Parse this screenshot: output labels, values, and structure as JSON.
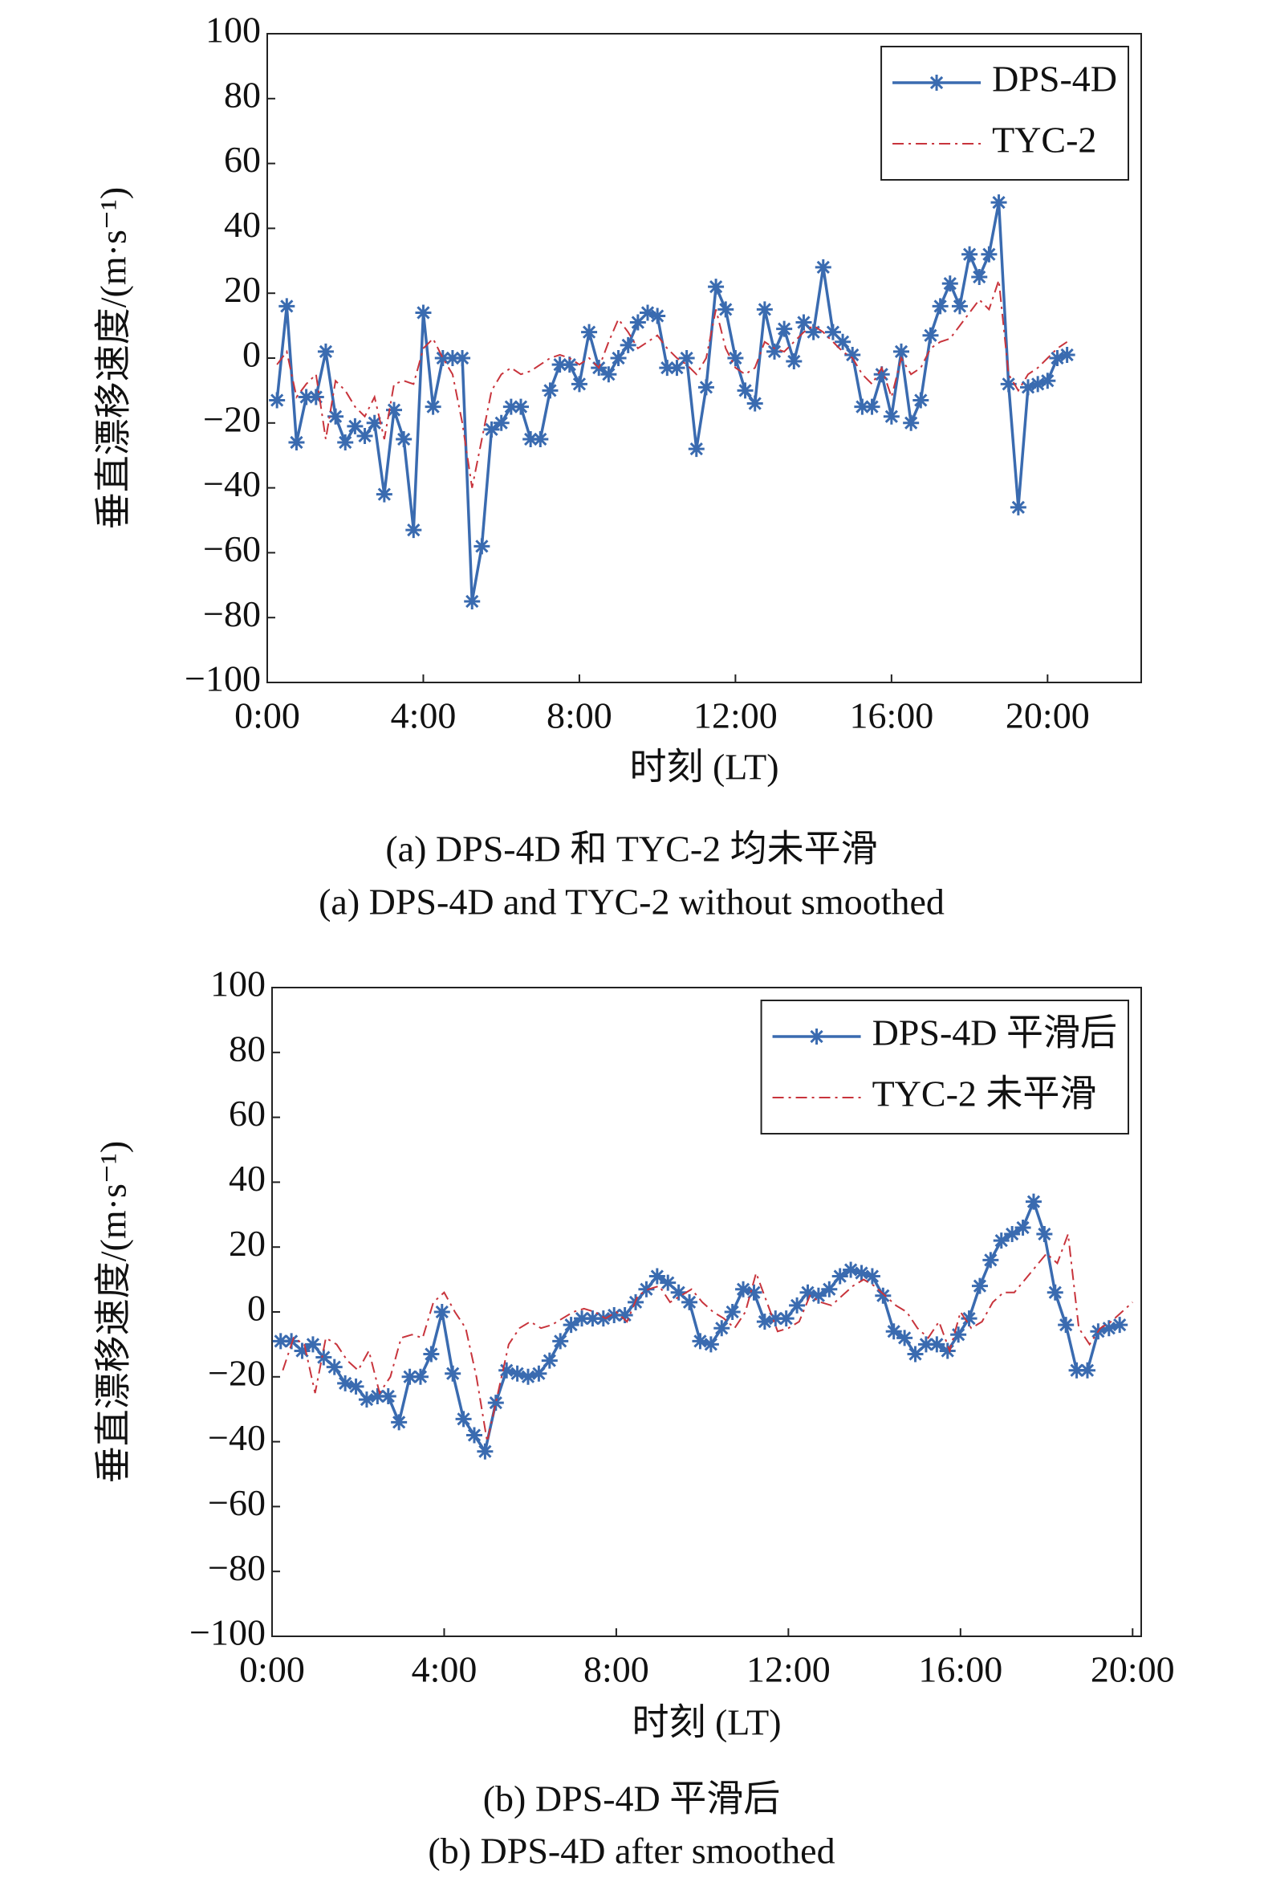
{
  "chart_data": [
    {
      "type": "line",
      "title": "(a) DPS-4D 和 TYC-2 均未平滑",
      "subtitle": "(a) DPS-4D and TYC-2 without smoothed",
      "x_label": "时刻 (LT)",
      "y_label": "垂直漂移速度/(m·s⁻¹)",
      "xlim": [
        0,
        22.4
      ],
      "ylim": [
        -100,
        100
      ],
      "xticks": [
        {
          "value": 0,
          "label": "0:00"
        },
        {
          "value": 4,
          "label": "4:00"
        },
        {
          "value": 8,
          "label": "8:00"
        },
        {
          "value": 12,
          "label": "12:00"
        },
        {
          "value": 16,
          "label": "16:00"
        },
        {
          "value": 20,
          "label": "20:00"
        }
      ],
      "yticks": [
        {
          "value": -100,
          "label": "−100"
        },
        {
          "value": -80,
          "label": "−80"
        },
        {
          "value": -60,
          "label": "−60"
        },
        {
          "value": -40,
          "label": "−40"
        },
        {
          "value": -20,
          "label": "−20"
        },
        0,
        20,
        40,
        60,
        80,
        100
      ],
      "legend": "upper right",
      "series": [
        {
          "name": "DPS-4D",
          "color": "#3a6bb0",
          "style": "solid",
          "marker": "asterisk",
          "x": [
            0.25,
            0.5,
            0.75,
            1,
            1.25,
            1.5,
            1.75,
            2,
            2.25,
            2.5,
            2.75,
            3,
            3.25,
            3.5,
            3.75,
            4,
            4.25,
            4.5,
            4.75,
            5,
            5.25,
            5.5,
            5.75,
            6,
            6.25,
            6.5,
            6.75,
            7,
            7.25,
            7.5,
            7.75,
            8,
            8.25,
            8.5,
            8.75,
            9,
            9.25,
            9.5,
            9.75,
            10,
            10.25,
            10.5,
            10.75,
            11,
            11.25,
            11.5,
            11.75,
            12,
            12.25,
            12.5,
            12.75,
            13,
            13.25,
            13.5,
            13.75,
            14,
            14.25,
            14.5,
            14.75,
            15,
            15.25,
            15.5,
            15.75,
            16,
            16.25,
            16.5,
            16.75,
            17,
            17.25,
            17.5,
            17.75,
            18,
            18.25,
            18.5,
            18.75,
            19,
            19.25,
            19.5,
            19.75,
            20,
            20.25,
            20.5
          ],
          "values": [
            -13,
            16,
            -26,
            -12,
            -12,
            2,
            -18,
            -26,
            -21,
            -24,
            -20,
            -42,
            -16,
            -25,
            -53,
            14,
            -15,
            0,
            0,
            0,
            -75,
            -58,
            -22,
            -20,
            -15,
            -15,
            -25,
            -25,
            -10,
            -2,
            -2,
            -8,
            8,
            -3,
            -5,
            0,
            4,
            11,
            14,
            13,
            -3,
            -3,
            0,
            -28,
            -9,
            22,
            15,
            0,
            -10,
            -14,
            15,
            2,
            9,
            -1,
            11,
            8,
            28,
            8,
            5,
            1,
            -15,
            -15,
            -5,
            -18,
            2,
            -20,
            -13,
            7,
            16,
            23,
            16,
            32,
            25,
            32,
            48,
            -8,
            -46,
            -9,
            -8,
            -7,
            0,
            1
          ]
        },
        {
          "name": "TYC-2",
          "color": "#c8343c",
          "style": "dashdot",
          "marker": "none",
          "x": [
            0.25,
            0.5,
            0.75,
            1,
            1.25,
            1.5,
            1.75,
            2,
            2.25,
            2.5,
            2.75,
            3,
            3.25,
            3.5,
            3.75,
            4,
            4.25,
            4.5,
            4.75,
            5,
            5.25,
            5.5,
            5.75,
            6,
            6.25,
            6.5,
            6.75,
            7,
            7.25,
            7.5,
            7.75,
            8,
            8.25,
            8.5,
            8.75,
            9,
            9.25,
            9.5,
            9.75,
            10,
            10.25,
            10.5,
            10.75,
            11,
            11.25,
            11.5,
            11.75,
            12,
            12.25,
            12.5,
            12.75,
            13,
            13.25,
            13.5,
            13.75,
            14,
            14.25,
            14.5,
            14.75,
            15,
            15.25,
            15.5,
            15.75,
            16,
            16.25,
            16.5,
            16.75,
            17,
            17.25,
            17.5,
            17.75,
            18,
            18.25,
            18.5,
            18.75,
            19,
            19.25,
            19.5,
            19.75,
            20,
            20.25,
            20.5
          ],
          "values": [
            -2,
            2,
            -12,
            -8,
            -5,
            -25,
            -7,
            -10,
            -15,
            -18,
            -12,
            -25,
            -8,
            -7,
            -8,
            3,
            6,
            0,
            -5,
            -20,
            -40,
            -25,
            -10,
            -5,
            -3,
            -5,
            -4,
            -2,
            0,
            1,
            0,
            -2,
            0,
            -3,
            5,
            12,
            8,
            3,
            5,
            7,
            3,
            0,
            -2,
            -5,
            0,
            15,
            3,
            -3,
            -5,
            -3,
            5,
            3,
            2,
            5,
            8,
            10,
            8,
            5,
            2,
            0,
            -5,
            -8,
            -3,
            -12,
            0,
            -5,
            -3,
            3,
            5,
            6,
            10,
            14,
            18,
            15,
            24,
            -5,
            -10,
            -5,
            -3,
            0,
            3,
            5
          ]
        }
      ]
    },
    {
      "type": "line",
      "title": "(b) DPS-4D 平滑后",
      "subtitle": "(b) DPS-4D after smoothed",
      "x_label": "时刻 (LT)",
      "y_label": "垂直漂移速度/(m·s⁻¹)",
      "xlim": [
        0,
        20.2
      ],
      "ylim": [
        -100,
        100
      ],
      "xticks": [
        {
          "value": 0,
          "label": "0:00"
        },
        {
          "value": 4,
          "label": "4:00"
        },
        {
          "value": 8,
          "label": "8:00"
        },
        {
          "value": 12,
          "label": "12:00"
        },
        {
          "value": 16,
          "label": "16:00"
        },
        {
          "value": 20,
          "label": "20:00"
        }
      ],
      "yticks": [
        {
          "value": -100,
          "label": "−100"
        },
        {
          "value": -80,
          "label": "−80"
        },
        {
          "value": -60,
          "label": "−60"
        },
        {
          "value": -40,
          "label": "−40"
        },
        {
          "value": -20,
          "label": "−20"
        },
        0,
        20,
        40,
        60,
        80,
        100
      ],
      "legend": "upper right",
      "series": [
        {
          "name": "DPS-4D 平滑后",
          "color": "#3a6bb0",
          "style": "solid",
          "marker": "asterisk",
          "x": [
            0.2,
            0.45,
            0.7,
            0.95,
            1.2,
            1.45,
            1.7,
            1.95,
            2.2,
            2.45,
            2.7,
            2.95,
            3.2,
            3.45,
            3.7,
            3.95,
            4.2,
            4.45,
            4.7,
            4.95,
            5.2,
            5.45,
            5.7,
            5.95,
            6.2,
            6.45,
            6.7,
            6.95,
            7.2,
            7.45,
            7.7,
            7.95,
            8.2,
            8.45,
            8.7,
            8.95,
            9.2,
            9.45,
            9.7,
            9.95,
            10.2,
            10.45,
            10.7,
            10.95,
            11.2,
            11.45,
            11.7,
            11.95,
            12.2,
            12.45,
            12.7,
            12.95,
            13.2,
            13.45,
            13.7,
            13.95,
            14.2,
            14.45,
            14.7,
            14.95,
            15.2,
            15.45,
            15.7,
            15.95,
            16.2,
            16.45,
            16.7,
            16.95,
            17.2,
            17.45,
            17.7,
            17.95,
            18.2,
            18.45,
            18.7,
            18.95,
            19.2,
            19.45,
            19.7
          ],
          "values": [
            -9,
            -9,
            -12,
            -10,
            -14,
            -17,
            -22,
            -23,
            -27,
            -26,
            -26,
            -34,
            -20,
            -20,
            -13,
            0,
            -19,
            -33,
            -38,
            -43,
            -28,
            -18,
            -19,
            -20,
            -19,
            -15,
            -9,
            -4,
            -2,
            -2,
            -2,
            -1,
            -1,
            3,
            7,
            11,
            9,
            6,
            3,
            -9,
            -10,
            -5,
            0,
            7,
            6,
            -3,
            -2,
            -2,
            2,
            6,
            5,
            7,
            11,
            13,
            12,
            11,
            5,
            -6,
            -8,
            -13,
            -10,
            -10,
            -12,
            -7,
            -2,
            8,
            16,
            22,
            24,
            26,
            34,
            24,
            6,
            -4,
            -18,
            -18,
            -6,
            -5,
            -4
          ]
        },
        {
          "name": "TYC-2 未平滑",
          "color": "#c8343c",
          "style": "dashdot",
          "marker": "none",
          "x": [
            0.25,
            0.5,
            0.75,
            1,
            1.25,
            1.5,
            1.75,
            2,
            2.25,
            2.5,
            2.75,
            3,
            3.25,
            3.5,
            3.75,
            4,
            4.25,
            4.5,
            4.75,
            5,
            5.25,
            5.5,
            5.75,
            6,
            6.25,
            6.5,
            6.75,
            7,
            7.25,
            7.5,
            7.75,
            8,
            8.25,
            8.5,
            8.75,
            9,
            9.25,
            9.5,
            9.75,
            10,
            10.25,
            10.5,
            10.75,
            11,
            11.25,
            11.5,
            11.75,
            12,
            12.25,
            12.5,
            12.75,
            13,
            13.25,
            13.5,
            13.75,
            14,
            14.25,
            14.5,
            14.75,
            15,
            15.25,
            15.5,
            15.75,
            16,
            16.25,
            16.5,
            16.75,
            17,
            17.25,
            17.5,
            17.75,
            18,
            18.25,
            18.5,
            18.75,
            19,
            19.25,
            19.5,
            19.75,
            20
          ],
          "values": [
            -18,
            -8,
            -10,
            -25,
            -8,
            -10,
            -15,
            -18,
            -12,
            -25,
            -20,
            -8,
            -7,
            -8,
            3,
            6,
            0,
            -5,
            -20,
            -40,
            -25,
            -10,
            -5,
            -3,
            -5,
            -4,
            -2,
            0,
            1,
            0,
            -2,
            0,
            -3,
            5,
            7,
            8,
            3,
            5,
            7,
            3,
            0,
            -2,
            -5,
            0,
            12,
            3,
            -6,
            -5,
            -3,
            5,
            3,
            2,
            5,
            8,
            10,
            8,
            5,
            2,
            0,
            -5,
            -8,
            -3,
            -12,
            0,
            -5,
            -3,
            3,
            6,
            6,
            10,
            14,
            18,
            15,
            24,
            -5,
            -10,
            -5,
            -3,
            0,
            3
          ]
        }
      ]
    }
  ]
}
